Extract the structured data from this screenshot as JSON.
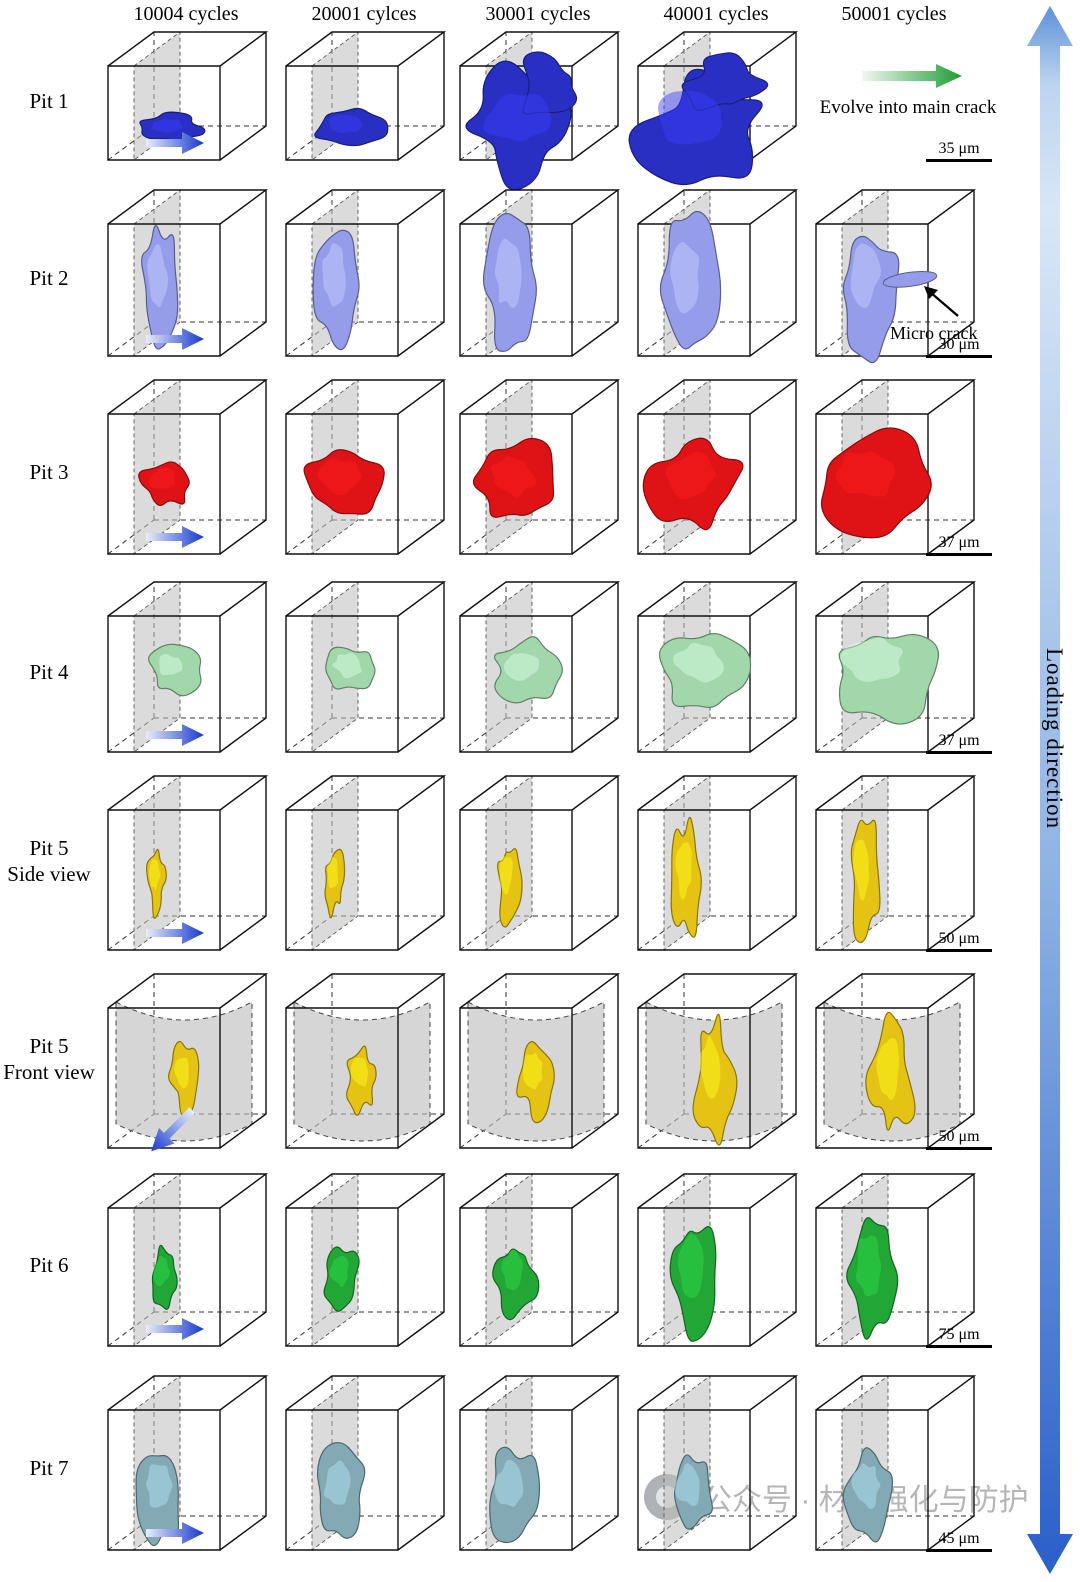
{
  "figure": {
    "columns": [
      "10004 cycles",
      "20001 cylces",
      "30001 cycles",
      "40001 cycles",
      "50001 cycles"
    ],
    "rows": [
      {
        "label": "Pit 1",
        "sublabel": "",
        "color": "#2a2fc4",
        "scale_bar": "35 μm"
      },
      {
        "label": "Pit 2",
        "sublabel": "",
        "color": "#959ce9",
        "scale_bar": "30 μm"
      },
      {
        "label": "Pit 3",
        "sublabel": "",
        "color": "#df1315",
        "scale_bar": "37 μm"
      },
      {
        "label": "Pit 4",
        "sublabel": "",
        "color": "#a2d7ab",
        "scale_bar": "37 μm"
      },
      {
        "label": "Pit 5",
        "sublabel": "Side view",
        "color": "#e5c314",
        "scale_bar": "50 μm"
      },
      {
        "label": "Pit 5",
        "sublabel": "Front view",
        "color": "#e5c314",
        "scale_bar": "50 μm"
      },
      {
        "label": "Pit 6",
        "sublabel": "",
        "color": "#22a636",
        "scale_bar": "75 μm"
      },
      {
        "label": "Pit 7",
        "sublabel": "",
        "color": "#83aab4",
        "scale_bar": "45 μm"
      }
    ],
    "annotations": {
      "evolve_label": "Evolve into main crack",
      "micro_crack_label": "Micro crack",
      "loading_direction_label": "Loading direction"
    },
    "watermark_text": "公众号 · 材料强化与防护",
    "colors": {
      "loading_arrow_light": "#d9e6f7",
      "loading_arrow_dark": "#2a5fc9",
      "cell_arrow_dark": "#1638cf",
      "cell_arrow_light": "#e8eef9",
      "evolve_arrow_green": "#1d9e33",
      "evolve_arrow_light": "#f2f8f2",
      "cut_plane_gray": "#bdbdbd"
    }
  }
}
